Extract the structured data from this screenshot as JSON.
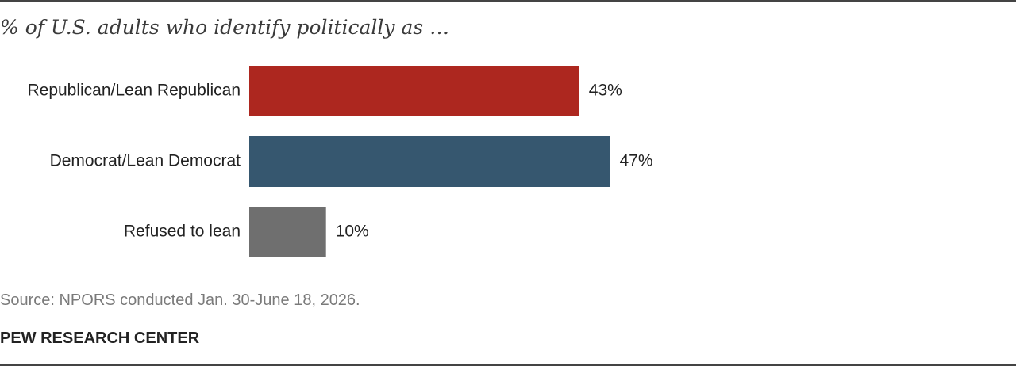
{
  "chart_data": {
    "type": "bar",
    "orientation": "horizontal",
    "title": "% of U.S. adults who identify politically as …",
    "categories": [
      "Republican/Lean Republican",
      "Democrat/Lean Democrat",
      "Refused to lean"
    ],
    "values": [
      43,
      47,
      10
    ],
    "value_labels": [
      "43%",
      "47%",
      "10%"
    ],
    "colors": [
      "#ad271f",
      "#36576f",
      "#6f6f6f"
    ],
    "xlim": [
      0,
      100
    ],
    "grid": false,
    "legend": "none"
  },
  "footer": {
    "source": "Source: NPORS conducted Jan. 30-June 18, 2026.",
    "organization": "PEW RESEARCH CENTER"
  }
}
